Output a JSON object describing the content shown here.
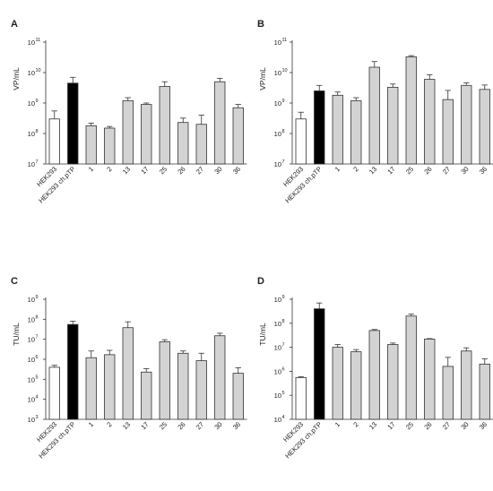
{
  "chart_data": [
    {
      "panel": "A",
      "type": "bar",
      "ylabel": "VP/mL",
      "yscale": "log",
      "ylim_exp": [
        7,
        11
      ],
      "categories": [
        "HEK293",
        "HEK293 ch.pTP",
        "1",
        "2",
        "13",
        "17",
        "25",
        "26",
        "27",
        "30",
        "36"
      ],
      "values": [
        300000000.0,
        4500000000.0,
        180000000.0,
        150000000.0,
        1200000000.0,
        900000000.0,
        3500000000.0,
        230000000.0,
        200000000.0,
        5000000000.0,
        700000000.0
      ],
      "errors": [
        550000000.0,
        7000000000.0,
        220000000.0,
        170000000.0,
        1500000000.0,
        1000000000.0,
        5000000000.0,
        320000000.0,
        400000000.0,
        6500000000.0,
        900000000.0
      ],
      "fills": [
        "#ffffff",
        "#000000",
        "#d3d3d3",
        "#d3d3d3",
        "#d3d3d3",
        "#d3d3d3",
        "#d3d3d3",
        "#d3d3d3",
        "#d3d3d3",
        "#d3d3d3",
        "#d3d3d3"
      ]
    },
    {
      "panel": "B",
      "type": "bar",
      "ylabel": "VP/mL",
      "yscale": "log",
      "ylim_exp": [
        7,
        11
      ],
      "categories": [
        "HEK293",
        "HEK293 ch.pTP",
        "1",
        "2",
        "13",
        "17",
        "25",
        "26",
        "27",
        "30",
        "36"
      ],
      "values": [
        300000000.0,
        2500000000.0,
        1800000000.0,
        1200000000.0,
        15000000000.0,
        3300000000.0,
        33000000000.0,
        6000000000.0,
        1300000000.0,
        3800000000.0,
        2800000000.0
      ],
      "errors": [
        500000000.0,
        3800000000.0,
        2300000000.0,
        1500000000.0,
        23000000000.0,
        4200000000.0,
        36000000000.0,
        8500000000.0,
        2600000000.0,
        4600000000.0,
        3900000000.0
      ],
      "fills": [
        "#ffffff",
        "#000000",
        "#d3d3d3",
        "#d3d3d3",
        "#d3d3d3",
        "#d3d3d3",
        "#d3d3d3",
        "#d3d3d3",
        "#d3d3d3",
        "#d3d3d3",
        "#d3d3d3"
      ]
    },
    {
      "panel": "C",
      "type": "bar",
      "ylabel": "TU/mL",
      "yscale": "log",
      "ylim_exp": [
        3,
        9
      ],
      "categories": [
        "HEK293",
        "HEK293 ch.pTP",
        "1",
        "2",
        "13",
        "17",
        "25",
        "26",
        "27",
        "30",
        "36"
      ],
      "values": [
        400000.0,
        55000000.0,
        1200000.0,
        1700000.0,
        38000000.0,
        230000.0,
        7500000.0,
        2000000.0,
        850000.0,
        15000000.0,
        200000.0
      ],
      "errors": [
        500000.0,
        80000000.0,
        2600000.0,
        2800000.0,
        75000000.0,
        340000.0,
        9500000.0,
        2600000.0,
        2000000.0,
        20000000.0,
        380000.0
      ],
      "fills": [
        "#ffffff",
        "#000000",
        "#d3d3d3",
        "#d3d3d3",
        "#d3d3d3",
        "#d3d3d3",
        "#d3d3d3",
        "#d3d3d3",
        "#d3d3d3",
        "#d3d3d3",
        "#d3d3d3"
      ]
    },
    {
      "panel": "D",
      "type": "bar",
      "ylabel": "TU/mL",
      "yscale": "log",
      "ylim_exp": [
        4,
        9
      ],
      "categories": [
        "HEK293",
        "HEK293 ch.pTP",
        "1",
        "2",
        "13",
        "17",
        "25",
        "26",
        "27",
        "30",
        "36"
      ],
      "values": [
        550000.0,
        400000000.0,
        10000000.0,
        6500000.0,
        50000000.0,
        13000000.0,
        200000000.0,
        22000000.0,
        1600000.0,
        7000000.0,
        2000000.0
      ],
      "errors": [
        600000.0,
        700000000.0,
        13000000.0,
        8000000.0,
        55000000.0,
        15000000.0,
        240000000.0,
        23000000.0,
        3800000.0,
        9500000.0,
        3300000.0
      ],
      "fills": [
        "#ffffff",
        "#000000",
        "#d3d3d3",
        "#d3d3d3",
        "#d3d3d3",
        "#d3d3d3",
        "#d3d3d3",
        "#d3d3d3",
        "#d3d3d3",
        "#d3d3d3",
        "#d3d3d3"
      ]
    }
  ]
}
